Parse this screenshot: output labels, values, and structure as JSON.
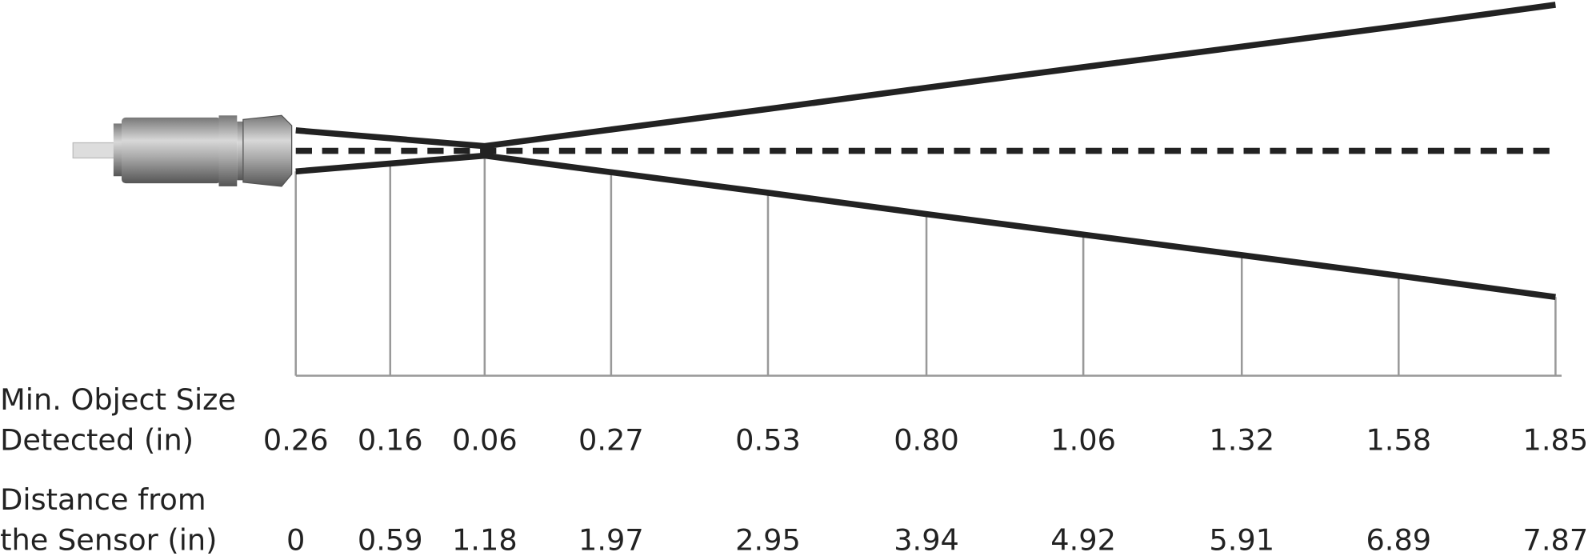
{
  "size_row": {
    "label_lines": [
      "Min. Object Size",
      "Detected (in)"
    ],
    "values": [
      0.26,
      0.16,
      0.06,
      0.27,
      0.53,
      {
        "value": 0.8,
        "label": "0.80"
      },
      1.06,
      1.32,
      1.58,
      1.85
    ]
  },
  "distance_row": {
    "label_lines": [
      "Distance from",
      "the Sensor (in)"
    ],
    "values": [
      0,
      0.59,
      1.18,
      1.97,
      2.95,
      3.94,
      4.92,
      5.91,
      6.89,
      7.87
    ]
  }
}
